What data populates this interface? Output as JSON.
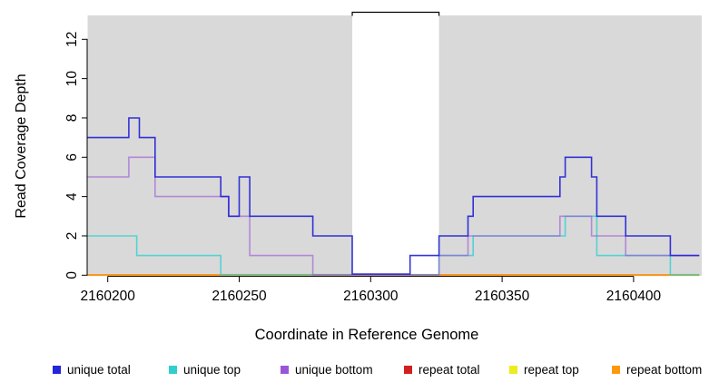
{
  "figure": {
    "xlabel": "Coordinate in Reference Genome",
    "ylabel": "Read Coverage Depth"
  },
  "legend": {
    "items": [
      {
        "label": "unique total",
        "color": "#2424d8"
      },
      {
        "label": "unique top",
        "color": "#30cfcf"
      },
      {
        "label": "unique bottom",
        "color": "#9a55d6"
      },
      {
        "label": "repeat total",
        "color": "#d02020"
      },
      {
        "label": "repeat top",
        "color": "#ecec20"
      },
      {
        "label": "repeat bottom",
        "color": "#ff980f"
      }
    ]
  },
  "chart_data": {
    "type": "line",
    "subtype": "step",
    "title": "",
    "xlabel": "Coordinate in Reference Genome",
    "ylabel": "Read Coverage Depth",
    "xlim": [
      2160192,
      2160425
    ],
    "ylim": [
      0,
      13.2
    ],
    "x_ticks": [
      2160200,
      2160250,
      2160300,
      2160350,
      2160400
    ],
    "y_ticks": [
      0,
      2,
      4,
      6,
      8,
      10,
      12
    ],
    "grid": false,
    "plot_bg": "#d9d9d9",
    "legend_position": "bottom",
    "masked_region": {
      "start": 2160293,
      "end": 2160326,
      "fill": "#ffffff",
      "border": "#000000"
    },
    "series": [
      {
        "name": "repeat total",
        "color": "#d02020",
        "opacity": 1,
        "points": [
          [
            2160192,
            0
          ]
        ],
        "end": 2160425
      },
      {
        "name": "repeat top",
        "color": "#ecec20",
        "opacity": 1,
        "points": [
          [
            2160192,
            0
          ]
        ],
        "end": 2160425
      },
      {
        "name": "repeat bottom",
        "color": "#ff980f",
        "opacity": 1,
        "points": [
          [
            2160192,
            0
          ]
        ],
        "end": 2160425
      },
      {
        "name": "unique top",
        "color": "#30cfcf",
        "opacity": 0.78,
        "points": [
          [
            2160192,
            2
          ],
          [
            2160211,
            1
          ],
          [
            2160243,
            0
          ],
          [
            2160326,
            1
          ],
          [
            2160339,
            2
          ],
          [
            2160374,
            3
          ],
          [
            2160386,
            1
          ],
          [
            2160414,
            0
          ]
        ],
        "end": 2160425
      },
      {
        "name": "unique bottom",
        "color": "#9a55d6",
        "opacity": 0.62,
        "points": [
          [
            2160192,
            5
          ],
          [
            2160208,
            6
          ],
          [
            2160218,
            4
          ],
          [
            2160246,
            3
          ],
          [
            2160254,
            1
          ],
          [
            2160278,
            0
          ],
          [
            2160326,
            1
          ],
          [
            2160337,
            2
          ],
          [
            2160372,
            3
          ],
          [
            2160384,
            2
          ],
          [
            2160397,
            1
          ]
        ],
        "end": 2160425
      },
      {
        "name": "unique total",
        "color": "#2424d8",
        "opacity": 0.92,
        "points": [
          [
            2160192,
            7
          ],
          [
            2160208,
            8
          ],
          [
            2160212,
            7
          ],
          [
            2160218,
            5
          ],
          [
            2160243,
            4
          ],
          [
            2160246,
            3
          ],
          [
            2160250,
            5
          ],
          [
            2160254,
            3
          ],
          [
            2160278,
            2
          ],
          [
            2160293,
            0
          ],
          [
            2160315,
            1
          ],
          [
            2160326,
            2
          ],
          [
            2160337,
            3
          ],
          [
            2160339,
            4
          ],
          [
            2160372,
            5
          ],
          [
            2160374,
            6
          ],
          [
            2160384,
            5
          ],
          [
            2160386,
            3
          ],
          [
            2160397,
            2
          ],
          [
            2160414,
            1
          ]
        ],
        "end": 2160425
      }
    ]
  }
}
